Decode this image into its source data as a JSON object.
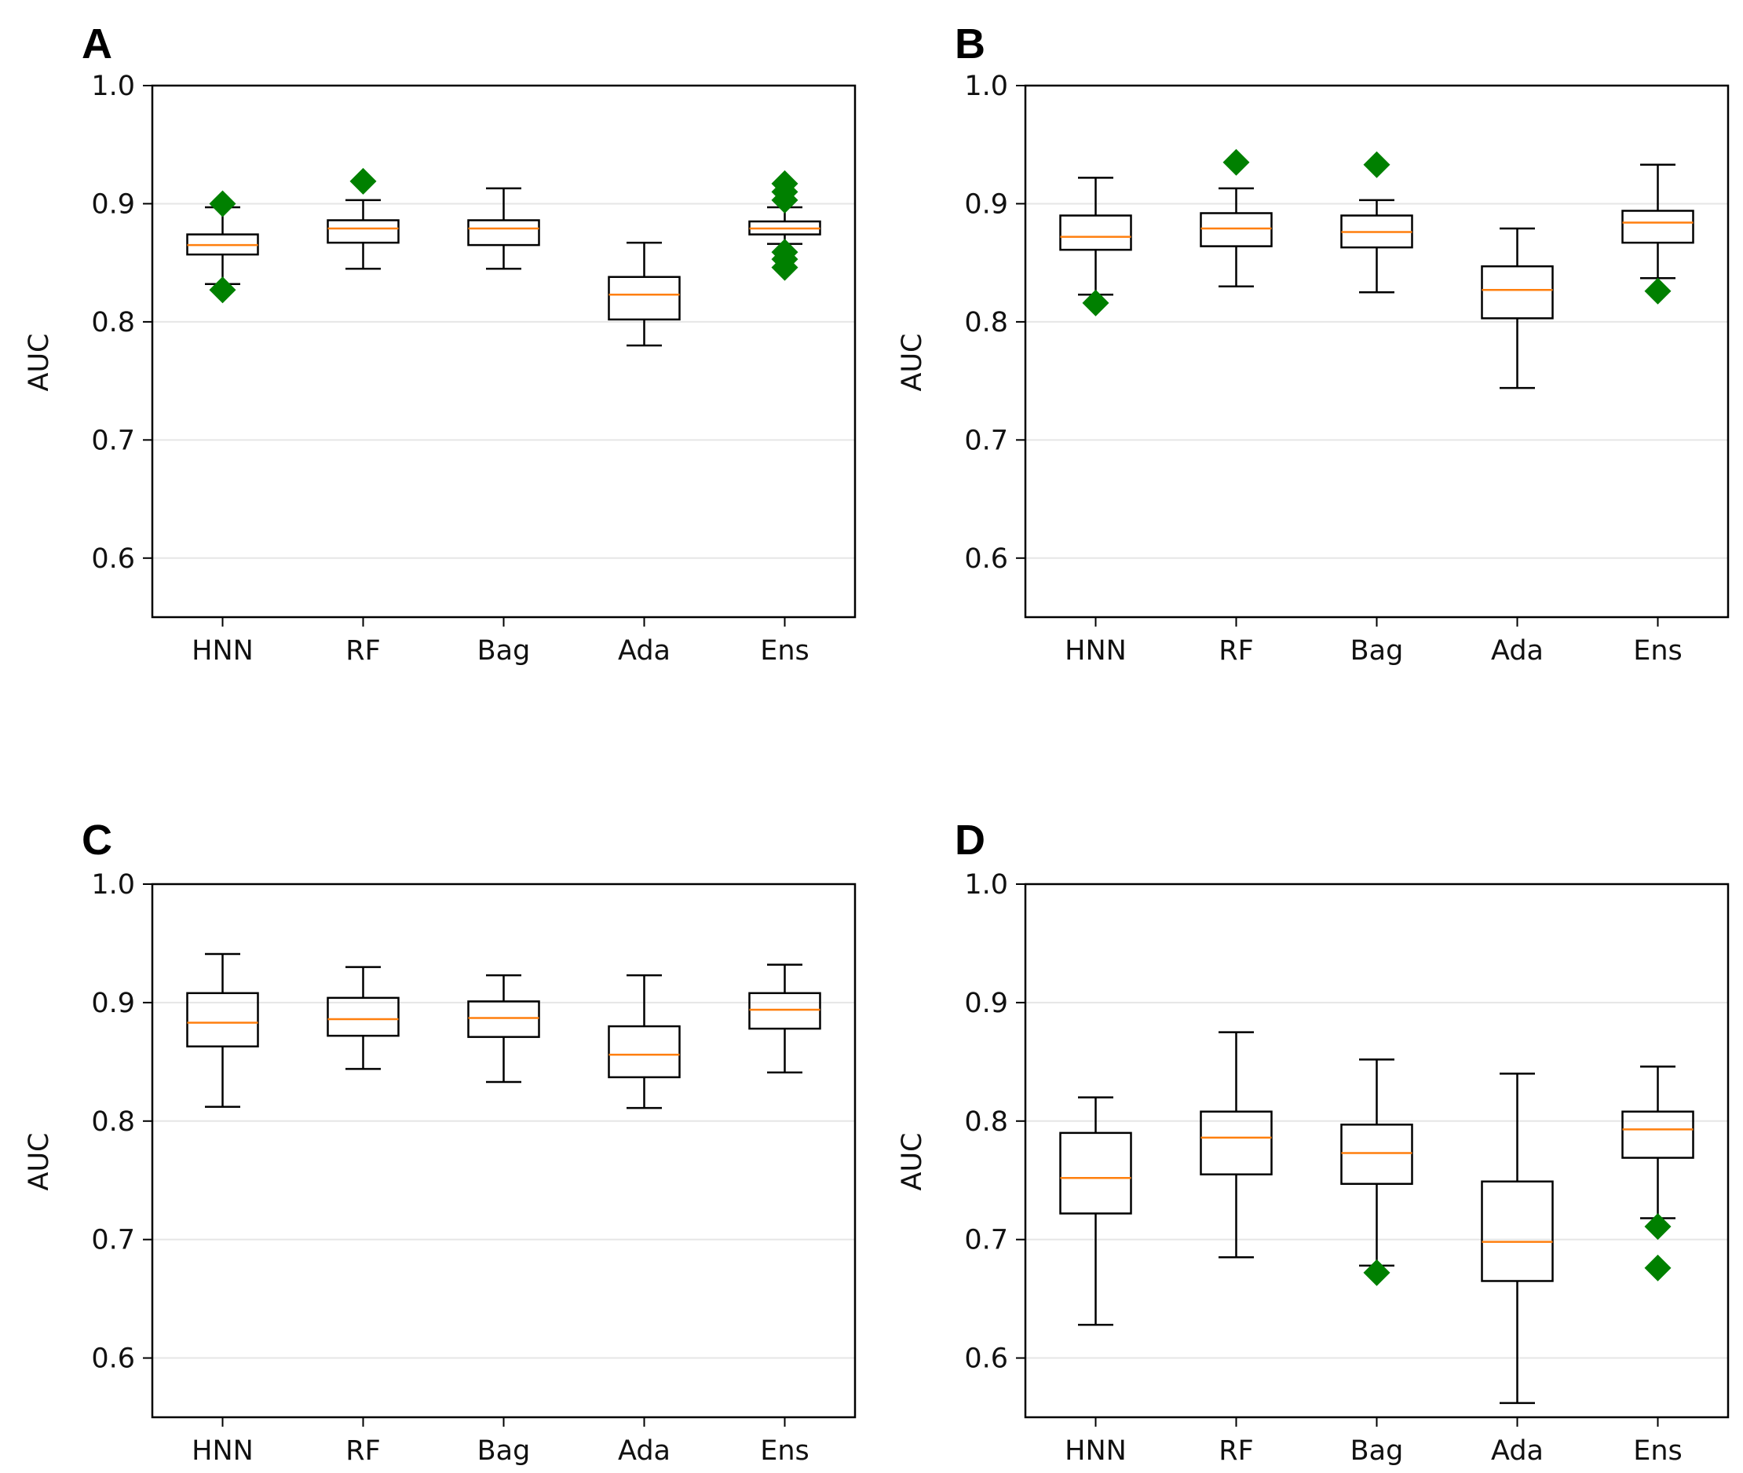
{
  "figure": {
    "palette": {
      "median": "#ff7f0e",
      "flier": "#008000",
      "grid": "#e6e6e6",
      "axis": "#000000"
    }
  },
  "chart_data": [
    {
      "panel": "A",
      "type": "box",
      "ylabel": "AUC",
      "xlabel": "",
      "ylim": [
        0.55,
        1.0
      ],
      "yticks": [
        0.6,
        0.7,
        0.8,
        0.9,
        1.0
      ],
      "ytick_labels": [
        "0.6",
        "0.7",
        "0.8",
        "0.9",
        "1.0"
      ],
      "grid": "horizontal",
      "categories": [
        "HNN",
        "RF",
        "Bag",
        "Ada",
        "Ens"
      ],
      "boxes": [
        {
          "label": "HNN",
          "whislo": 0.832,
          "q1": 0.857,
          "med": 0.865,
          "q3": 0.874,
          "whishi": 0.897,
          "fliers": [
            0.827,
            0.9
          ]
        },
        {
          "label": "RF",
          "whislo": 0.845,
          "q1": 0.867,
          "med": 0.879,
          "q3": 0.886,
          "whishi": 0.903,
          "fliers": [
            0.919
          ]
        },
        {
          "label": "Bag",
          "whislo": 0.845,
          "q1": 0.865,
          "med": 0.879,
          "q3": 0.886,
          "whishi": 0.913,
          "fliers": []
        },
        {
          "label": "Ada",
          "whislo": 0.78,
          "q1": 0.802,
          "med": 0.823,
          "q3": 0.838,
          "whishi": 0.867,
          "fliers": []
        },
        {
          "label": "Ens",
          "whislo": 0.866,
          "q1": 0.874,
          "med": 0.879,
          "q3": 0.885,
          "whishi": 0.897,
          "fliers": [
            0.846,
            0.853,
            0.859,
            0.903,
            0.91,
            0.917
          ]
        }
      ]
    },
    {
      "panel": "B",
      "type": "box",
      "ylabel": "AUC",
      "xlabel": "",
      "ylim": [
        0.55,
        1.0
      ],
      "yticks": [
        0.6,
        0.7,
        0.8,
        0.9,
        1.0
      ],
      "ytick_labels": [
        "0.6",
        "0.7",
        "0.8",
        "0.9",
        "1.0"
      ],
      "grid": "horizontal",
      "categories": [
        "HNN",
        "RF",
        "Bag",
        "Ada",
        "Ens"
      ],
      "boxes": [
        {
          "label": "HNN",
          "whislo": 0.823,
          "q1": 0.861,
          "med": 0.872,
          "q3": 0.89,
          "whishi": 0.922,
          "fliers": [
            0.816
          ]
        },
        {
          "label": "RF",
          "whislo": 0.83,
          "q1": 0.864,
          "med": 0.879,
          "q3": 0.892,
          "whishi": 0.913,
          "fliers": [
            0.935
          ]
        },
        {
          "label": "Bag",
          "whislo": 0.825,
          "q1": 0.863,
          "med": 0.876,
          "q3": 0.89,
          "whishi": 0.903,
          "fliers": [
            0.933
          ]
        },
        {
          "label": "Ada",
          "whislo": 0.744,
          "q1": 0.803,
          "med": 0.827,
          "q3": 0.847,
          "whishi": 0.879,
          "fliers": []
        },
        {
          "label": "Ens",
          "whislo": 0.837,
          "q1": 0.867,
          "med": 0.884,
          "q3": 0.894,
          "whishi": 0.933,
          "fliers": [
            0.826
          ]
        }
      ]
    },
    {
      "panel": "C",
      "type": "box",
      "ylabel": "AUC",
      "xlabel": "",
      "ylim": [
        0.55,
        1.0
      ],
      "yticks": [
        0.6,
        0.7,
        0.8,
        0.9,
        1.0
      ],
      "ytick_labels": [
        "0.6",
        "0.7",
        "0.8",
        "0.9",
        "1.0"
      ],
      "grid": "horizontal",
      "categories": [
        "HNN",
        "RF",
        "Bag",
        "Ada",
        "Ens"
      ],
      "boxes": [
        {
          "label": "HNN",
          "whislo": 0.812,
          "q1": 0.863,
          "med": 0.883,
          "q3": 0.908,
          "whishi": 0.941,
          "fliers": []
        },
        {
          "label": "RF",
          "whislo": 0.844,
          "q1": 0.872,
          "med": 0.886,
          "q3": 0.904,
          "whishi": 0.93,
          "fliers": []
        },
        {
          "label": "Bag",
          "whislo": 0.833,
          "q1": 0.871,
          "med": 0.887,
          "q3": 0.901,
          "whishi": 0.923,
          "fliers": []
        },
        {
          "label": "Ada",
          "whislo": 0.811,
          "q1": 0.837,
          "med": 0.856,
          "q3": 0.88,
          "whishi": 0.923,
          "fliers": []
        },
        {
          "label": "Ens",
          "whislo": 0.841,
          "q1": 0.878,
          "med": 0.894,
          "q3": 0.908,
          "whishi": 0.932,
          "fliers": []
        }
      ]
    },
    {
      "panel": "D",
      "type": "box",
      "ylabel": "AUC",
      "xlabel": "",
      "ylim": [
        0.55,
        1.0
      ],
      "yticks": [
        0.6,
        0.7,
        0.8,
        0.9,
        1.0
      ],
      "ytick_labels": [
        "0.6",
        "0.7",
        "0.8",
        "0.9",
        "1.0"
      ],
      "grid": "horizontal",
      "categories": [
        "HNN",
        "RF",
        "Bag",
        "Ada",
        "Ens"
      ],
      "boxes": [
        {
          "label": "HNN",
          "whislo": 0.628,
          "q1": 0.722,
          "med": 0.752,
          "q3": 0.79,
          "whishi": 0.82,
          "fliers": []
        },
        {
          "label": "RF",
          "whislo": 0.685,
          "q1": 0.755,
          "med": 0.786,
          "q3": 0.808,
          "whishi": 0.875,
          "fliers": []
        },
        {
          "label": "Bag",
          "whislo": 0.678,
          "q1": 0.747,
          "med": 0.773,
          "q3": 0.797,
          "whishi": 0.852,
          "fliers": [
            0.672
          ]
        },
        {
          "label": "Ada",
          "whislo": 0.562,
          "q1": 0.665,
          "med": 0.698,
          "q3": 0.749,
          "whishi": 0.84,
          "fliers": []
        },
        {
          "label": "Ens",
          "whislo": 0.718,
          "q1": 0.769,
          "med": 0.793,
          "q3": 0.808,
          "whishi": 0.846,
          "fliers": [
            0.676,
            0.711
          ]
        }
      ]
    }
  ]
}
